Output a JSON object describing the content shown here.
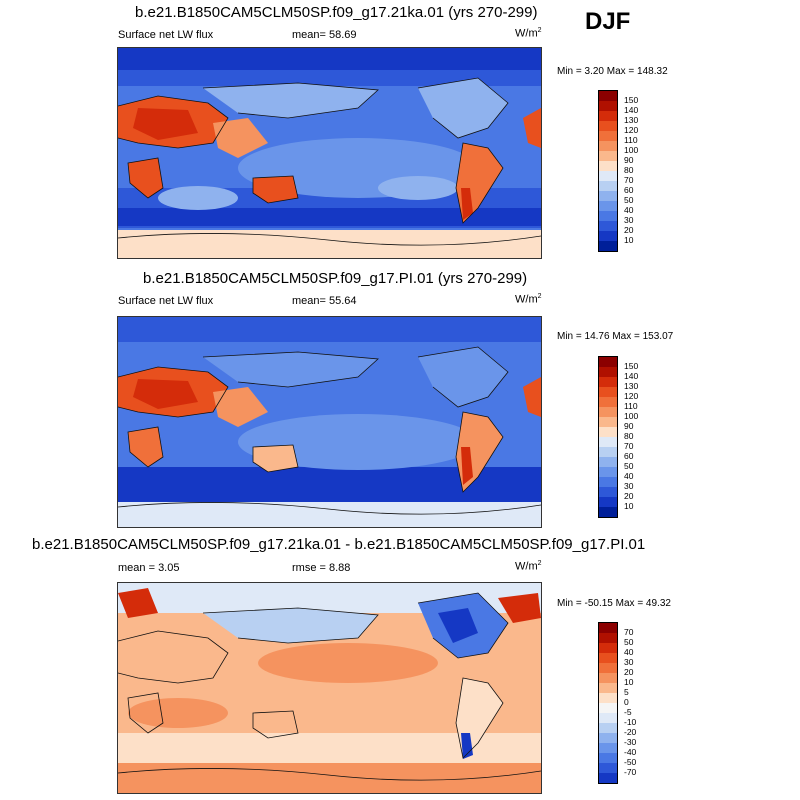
{
  "season": "DJF",
  "panels": [
    {
      "title": "b.e21.B1850CAM5CLM50SP.f09_g17.21ka.01 (yrs 270-299)",
      "variable": "Surface net LW flux",
      "mean_label": "mean=",
      "mean_value": "58.69",
      "units_base": "W/m",
      "units_exp": "2",
      "minmax": "Min =  3.20 Max = 148.32",
      "colorbar_labels": [
        "150",
        "140",
        "130",
        "120",
        "110",
        "100",
        "90",
        "80",
        "70",
        "60",
        "50",
        "40",
        "30",
        "20",
        "10"
      ]
    },
    {
      "title": "b.e21.B1850CAM5CLM50SP.f09_g17.PI.01 (yrs 270-299)",
      "variable": "Surface net LW flux",
      "mean_label": "mean=",
      "mean_value": "55.64",
      "units_base": "W/m",
      "units_exp": "2",
      "minmax": "Min = 14.76 Max = 153.07",
      "colorbar_labels": [
        "150",
        "140",
        "130",
        "120",
        "110",
        "100",
        "90",
        "80",
        "70",
        "60",
        "50",
        "40",
        "30",
        "20",
        "10"
      ]
    },
    {
      "title": "b.e21.B1850CAM5CLM50SP.f09_g17.21ka.01 - b.e21.B1850CAM5CLM50SP.f09_g17.PI.01",
      "mean_label": "mean =",
      "mean_value": "3.05",
      "rmse_label": "rmse =",
      "rmse_value": "8.88",
      "units_base": "W/m",
      "units_exp": "2",
      "minmax": "Min = -50.15 Max = 49.32",
      "colorbar_labels": [
        "70",
        "50",
        "40",
        "30",
        "20",
        "10",
        "5",
        "0",
        "-5",
        "-10",
        "-20",
        "-30",
        "-40",
        "-50",
        "-70"
      ]
    }
  ],
  "colors": {
    "abs_scale": [
      "#8b0000",
      "#b01000",
      "#d42c0a",
      "#e8501e",
      "#f0703a",
      "#f5935f",
      "#fab88c",
      "#fde0c8",
      "#dfe9f7",
      "#b8d0f2",
      "#8fb2ee",
      "#6a95ea",
      "#4a78e4",
      "#2e58d8",
      "#1538c4",
      "#001f99"
    ],
    "diff_scale": [
      "#8b0000",
      "#b01000",
      "#d42c0a",
      "#e8501e",
      "#f0703a",
      "#f5935f",
      "#fab88c",
      "#fde0c8",
      "#f5f5f5",
      "#dfe9f7",
      "#b8d0f2",
      "#8fb2ee",
      "#6a95ea",
      "#4a78e4",
      "#2e58d8",
      "#1538c4",
      "#001f99"
    ]
  }
}
